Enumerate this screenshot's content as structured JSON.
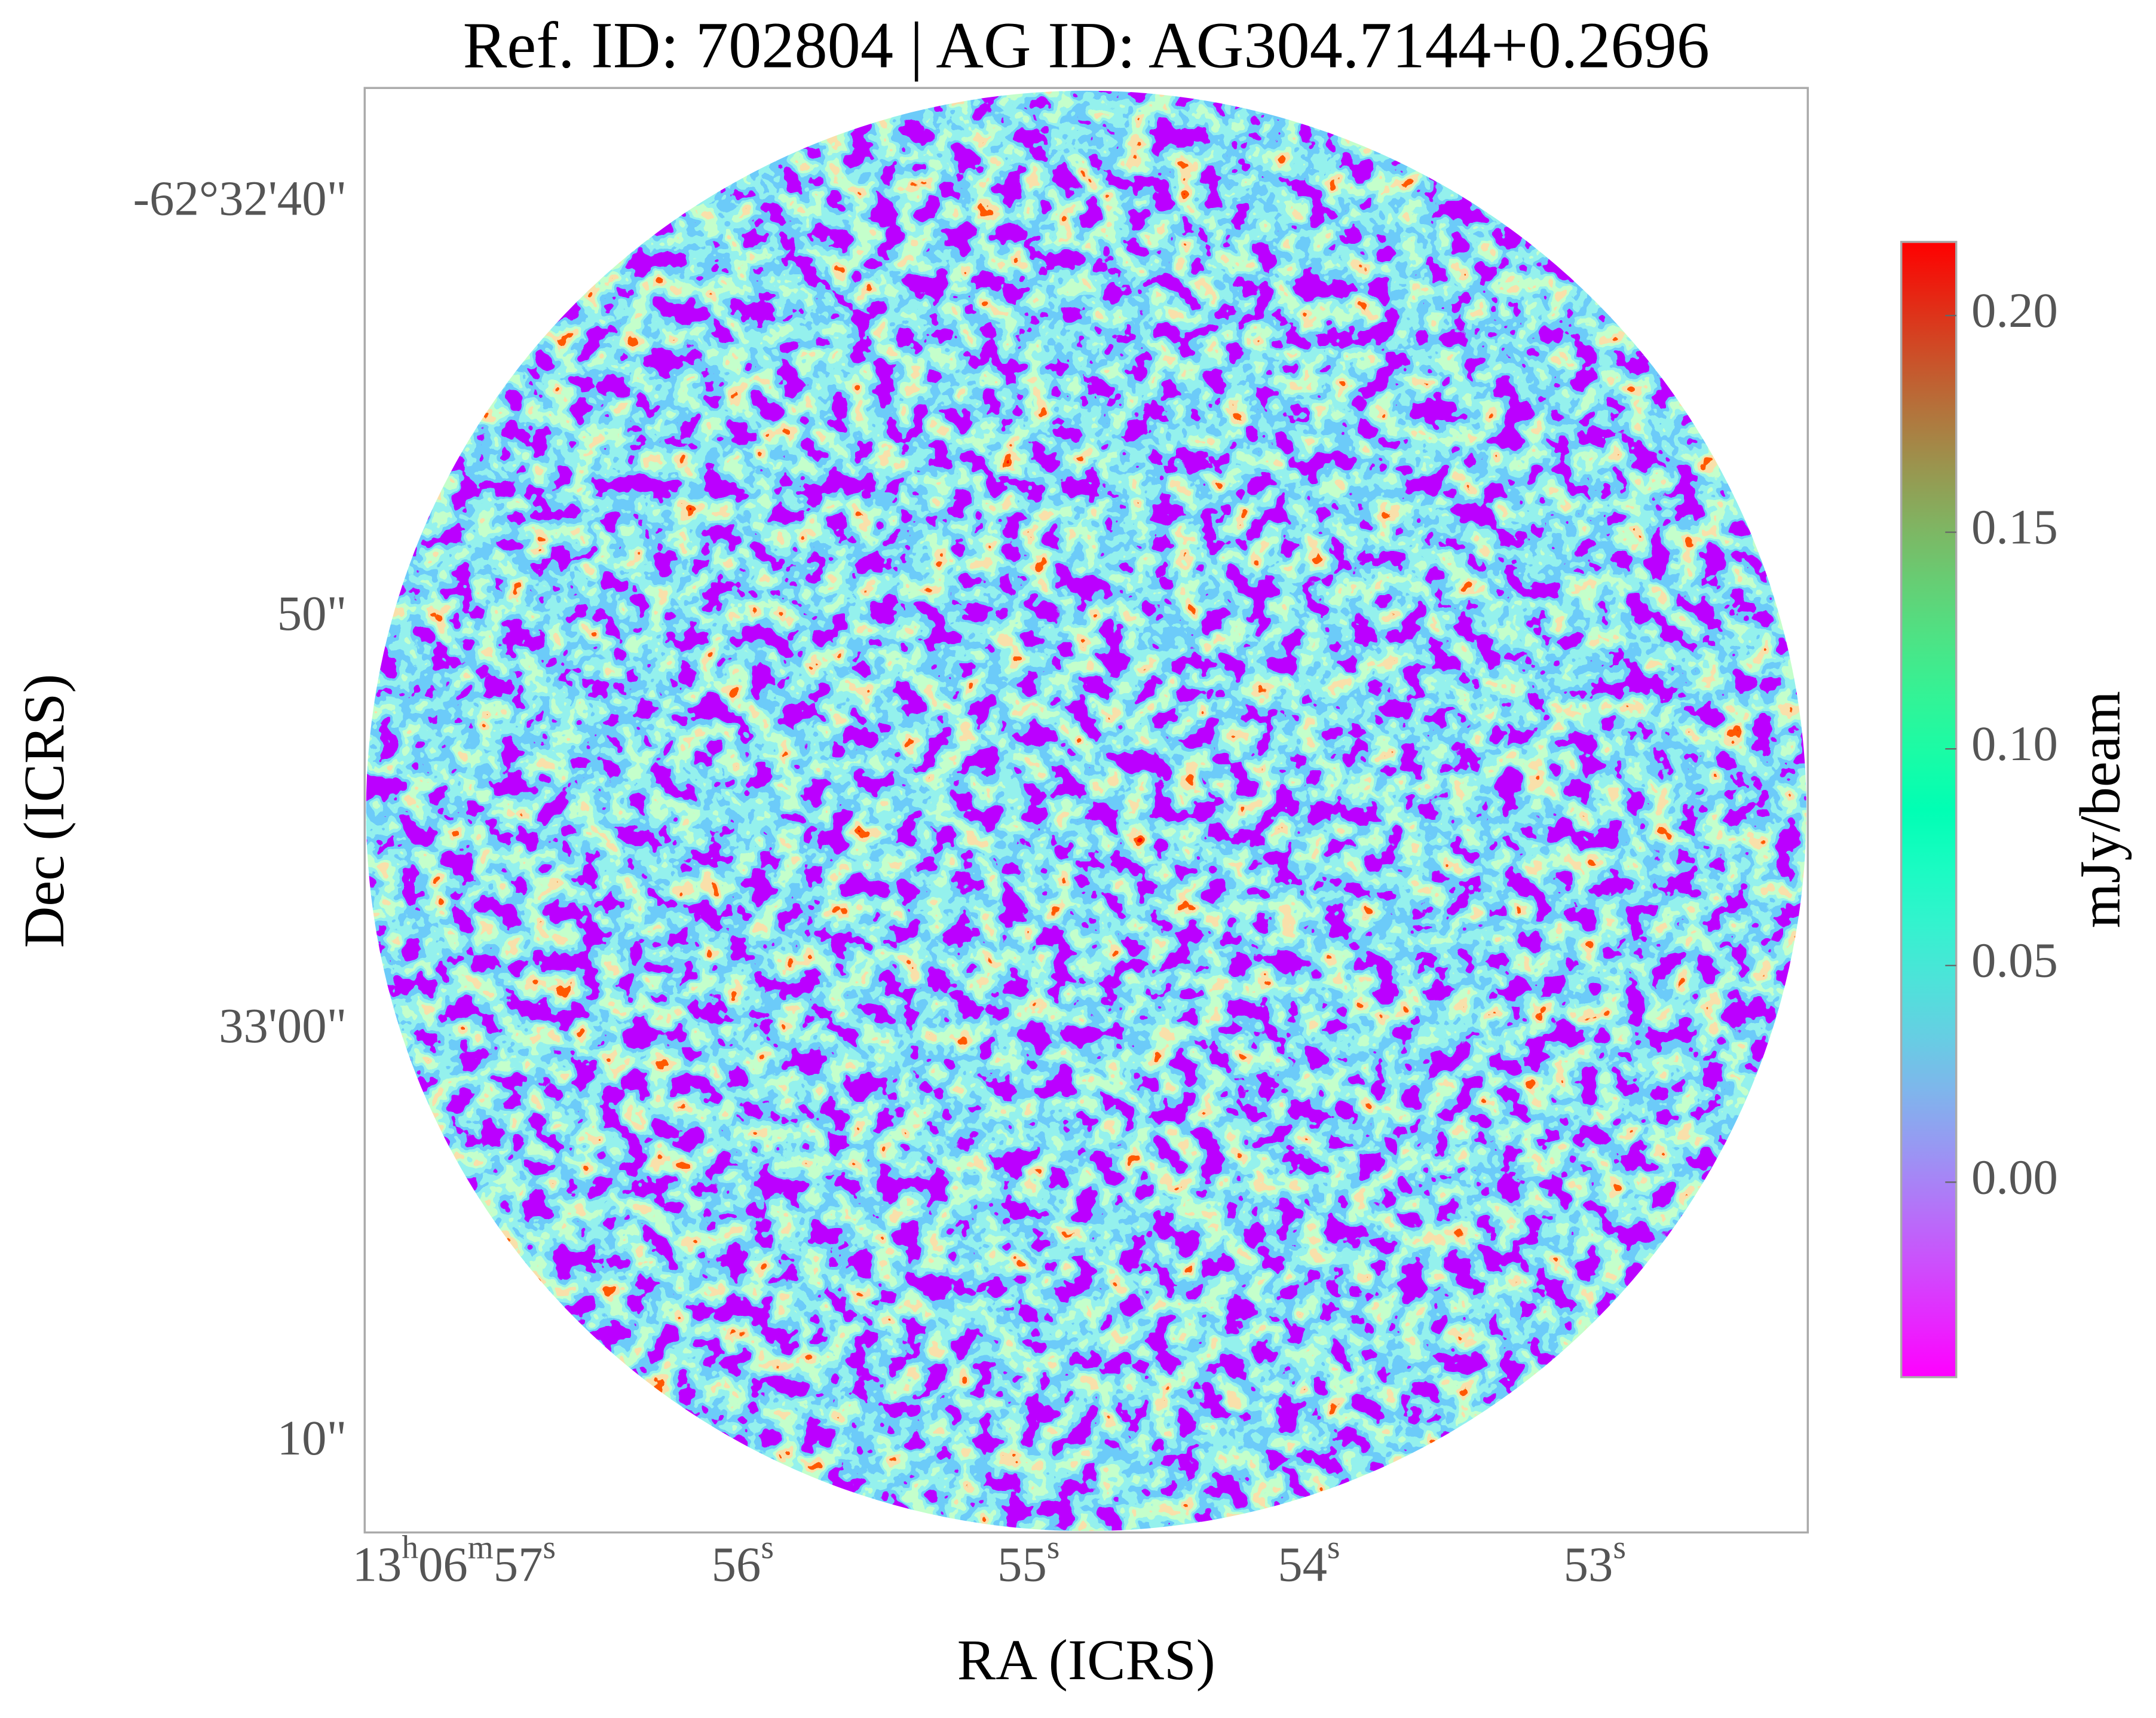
{
  "chart_data": {
    "type": "image",
    "title": "Ref. ID: 702804 | AG ID: AG304.7144+0.2696",
    "xlabel": "RA (ICRS)",
    "ylabel": "Dec (ICRS)",
    "xticklabels": [
      "13h06m57s",
      "56s",
      "55s",
      "54s",
      "53s"
    ],
    "yticklabels": [
      "-62°32'40\"",
      "50\"",
      "33'00\"",
      "10\""
    ],
    "colorbar": {
      "label": "mJy/beam",
      "colormap": "rainbow",
      "clim": [
        -0.045,
        0.217
      ],
      "ticks": [
        {
          "value": 0,
          "label": "0.00"
        },
        {
          "value": 0.05,
          "label": "0.05"
        },
        {
          "value": 0.1,
          "label": "0.10"
        },
        {
          "value": 0.15,
          "label": "0.15"
        },
        {
          "value": 0.2,
          "label": "0.20"
        }
      ]
    }
  }
}
